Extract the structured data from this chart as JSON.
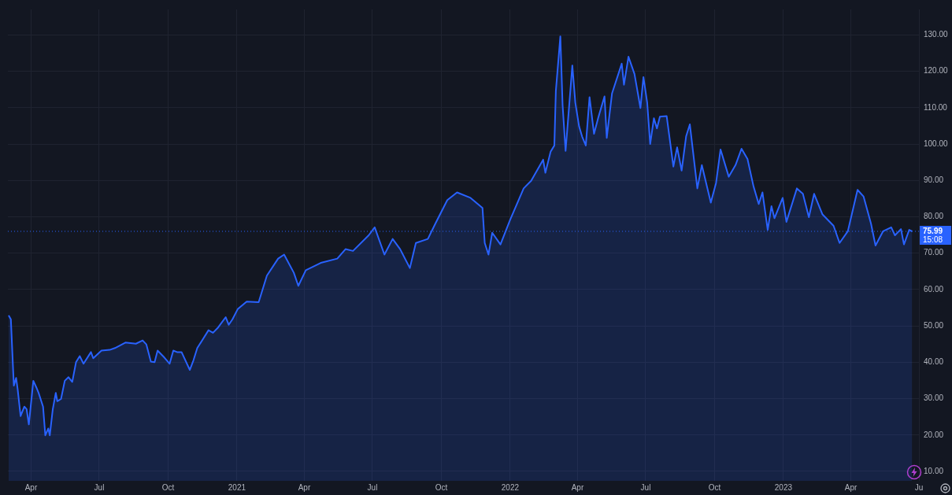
{
  "chart_data": {
    "type": "area",
    "marker": "none",
    "line_style": "solid",
    "grid": true,
    "legend": false,
    "x": [
      "2020-03-02",
      "2020-03-05",
      "2020-03-08",
      "2020-03-09",
      "2020-03-12",
      "2020-03-14",
      "2020-03-18",
      "2020-03-23",
      "2020-03-26",
      "2020-03-29",
      "2020-04-04",
      "2020-04-08",
      "2020-04-11",
      "2020-04-17",
      "2020-04-20",
      "2020-04-24",
      "2020-04-26",
      "2020-04-30",
      "2020-05-04",
      "2020-05-06",
      "2020-05-11",
      "2020-05-16",
      "2020-05-21",
      "2020-05-26",
      "2020-05-31",
      "2020-06-05",
      "2020-06-10",
      "2020-06-20",
      "2020-06-23",
      "2020-07-04",
      "2020-07-15",
      "2020-07-22",
      "2020-08-05",
      "2020-08-19",
      "2020-08-28",
      "2020-09-02",
      "2020-09-08",
      "2020-09-13",
      "2020-09-17",
      "2020-09-26",
      "2020-10-03",
      "2020-10-08",
      "2020-10-13",
      "2020-10-19",
      "2020-10-30",
      "2020-11-04",
      "2020-11-09",
      "2020-11-24",
      "2020-11-30",
      "2020-12-07",
      "2020-12-17",
      "2020-12-21",
      "2020-12-26",
      "2021-01-02",
      "2021-01-14",
      "2021-01-30",
      "2021-02-10",
      "2021-02-25",
      "2021-03-05",
      "2021-03-18",
      "2021-03-24",
      "2021-04-03",
      "2021-04-24",
      "2021-05-15",
      "2021-05-26",
      "2021-06-05",
      "2021-06-26",
      "2021-07-04",
      "2021-07-17",
      "2021-07-28",
      "2021-08-07",
      "2021-08-20",
      "2021-08-28",
      "2021-09-13",
      "2021-09-23",
      "2021-10-09",
      "2021-10-22",
      "2021-11-09",
      "2021-11-25",
      "2021-11-28",
      "2021-12-03",
      "2021-12-08",
      "2021-12-19",
      "2022-01-01",
      "2022-01-19",
      "2022-01-29",
      "2022-02-14",
      "2022-02-17",
      "2022-02-24",
      "2022-03-01",
      "2022-03-03",
      "2022-03-09",
      "2022-03-12",
      "2022-03-16",
      "2022-03-23",
      "2022-03-25",
      "2022-03-29",
      "2022-04-03",
      "2022-04-07",
      "2022-04-12",
      "2022-04-17",
      "2022-04-23",
      "2022-04-29",
      "2022-05-07",
      "2022-05-10",
      "2022-05-17",
      "2022-05-30",
      "2022-06-02",
      "2022-06-08",
      "2022-06-16",
      "2022-06-24",
      "2022-06-28",
      "2022-07-03",
      "2022-07-07",
      "2022-07-12",
      "2022-07-16",
      "2022-07-20",
      "2022-07-29",
      "2022-08-07",
      "2022-08-12",
      "2022-08-18",
      "2022-08-24",
      "2022-08-29",
      "2022-09-08",
      "2022-09-14",
      "2022-09-26",
      "2022-10-03",
      "2022-10-09",
      "2022-10-20",
      "2022-10-29",
      "2022-11-06",
      "2022-11-14",
      "2022-11-22",
      "2022-11-29",
      "2022-12-04",
      "2022-12-11",
      "2022-12-16",
      "2022-12-20",
      "2022-12-31",
      "2023-01-05",
      "2023-01-19",
      "2023-01-27",
      "2023-02-04",
      "2023-02-11",
      "2023-02-22",
      "2023-03-09",
      "2023-03-17",
      "2023-03-28",
      "2023-04-10",
      "2023-04-18",
      "2023-04-28",
      "2023-05-04",
      "2023-05-14",
      "2023-05-25",
      "2023-05-30",
      "2023-06-07",
      "2023-06-11",
      "2023-06-18",
      "2023-06-22"
    ],
    "series": [
      {
        "color": "#2962ff",
        "values": [
          52.9,
          51.8,
          37.9,
          33.6,
          35.7,
          32.7,
          25.2,
          27.8,
          27.1,
          22.9,
          34.9,
          33.1,
          31.6,
          27.8,
          19.9,
          21.8,
          19.9,
          27.1,
          31.6,
          29.3,
          29.9,
          34.9,
          35.9,
          34.6,
          40.0,
          41.7,
          39.6,
          42.8,
          41.1,
          43.2,
          43.4,
          43.9,
          45.4,
          45.1,
          46.0,
          44.9,
          40.2,
          40.0,
          43.2,
          41.3,
          39.6,
          43.2,
          42.8,
          42.8,
          37.9,
          40.6,
          43.9,
          48.8,
          48.1,
          49.6,
          52.4,
          50.3,
          51.8,
          54.6,
          56.7,
          56.5,
          63.8,
          68.5,
          69.6,
          64.6,
          61.0,
          65.3,
          67.4,
          68.5,
          71.1,
          70.6,
          74.9,
          77.1,
          69.6,
          73.9,
          71.1,
          65.9,
          72.8,
          73.9,
          78.1,
          84.6,
          86.7,
          85.2,
          82.4,
          72.8,
          69.6,
          75.6,
          72.4,
          79.2,
          87.8,
          89.9,
          95.7,
          92.1,
          97.9,
          99.6,
          114.6,
          129.6,
          110.7,
          98.1,
          116.3,
          121.6,
          111.4,
          104.9,
          102.1,
          99.6,
          112.9,
          102.8,
          107.5,
          113.1,
          101.7,
          113.9,
          122.1,
          116.3,
          124.0,
          119.3,
          109.9,
          118.4,
          111.4,
          100.0,
          107.1,
          104.3,
          107.5,
          107.7,
          93.8,
          99.1,
          92.7,
          102.1,
          105.4,
          87.8,
          94.2,
          83.9,
          89.3,
          98.5,
          91.0,
          94.2,
          98.7,
          95.9,
          88.4,
          83.5,
          86.7,
          76.4,
          82.9,
          79.6,
          85.2,
          78.6,
          87.8,
          86.3,
          79.9,
          86.3,
          80.7,
          77.5,
          72.8,
          76.0,
          87.4,
          85.6,
          78.1,
          72.1,
          76.0,
          77.1,
          74.9,
          76.6,
          72.4,
          76.4,
          75.99
        ]
      }
    ],
    "xlim": [
      "2020-03-01",
      "2023-07-01"
    ],
    "xticks": [
      {
        "value": "2020-04",
        "label": "Apr"
      },
      {
        "value": "2020-07",
        "label": "Jul"
      },
      {
        "value": "2020-10",
        "label": "Oct"
      },
      {
        "value": "2021-01",
        "label": "2021"
      },
      {
        "value": "2021-04",
        "label": "Apr"
      },
      {
        "value": "2021-07",
        "label": "Jul"
      },
      {
        "value": "2021-10",
        "label": "Oct"
      },
      {
        "value": "2022-01",
        "label": "2022"
      },
      {
        "value": "2022-04",
        "label": "Apr"
      },
      {
        "value": "2022-07",
        "label": "Jul"
      },
      {
        "value": "2022-10",
        "label": "Oct"
      },
      {
        "value": "2023-01",
        "label": "2023"
      },
      {
        "value": "2023-04",
        "label": "Apr"
      },
      {
        "value": "2023-07",
        "label": "Ju"
      }
    ],
    "ylim": [
      7.4,
      137
    ],
    "yticks": [
      {
        "value": 10,
        "label": "10.00"
      },
      {
        "value": 20,
        "label": "20.00"
      },
      {
        "value": 30,
        "label": "30.00"
      },
      {
        "value": 40,
        "label": "40.00"
      },
      {
        "value": 50,
        "label": "50.00"
      },
      {
        "value": 60,
        "label": "60.00"
      },
      {
        "value": 70,
        "label": "70.00"
      },
      {
        "value": 80,
        "label": "80.00"
      },
      {
        "value": 90,
        "label": "90.00"
      },
      {
        "value": 100,
        "label": "100.00"
      },
      {
        "value": 110,
        "label": "110.00"
      },
      {
        "value": 120,
        "label": "120.00"
      },
      {
        "value": 130,
        "label": "130.00"
      }
    ],
    "ref_lines": [
      {
        "axis": "y",
        "value": 75.99,
        "label": "75.99",
        "color": "#2962ff",
        "line_style": "dotted"
      }
    ],
    "annotations": [
      "15:08"
    ]
  }
}
